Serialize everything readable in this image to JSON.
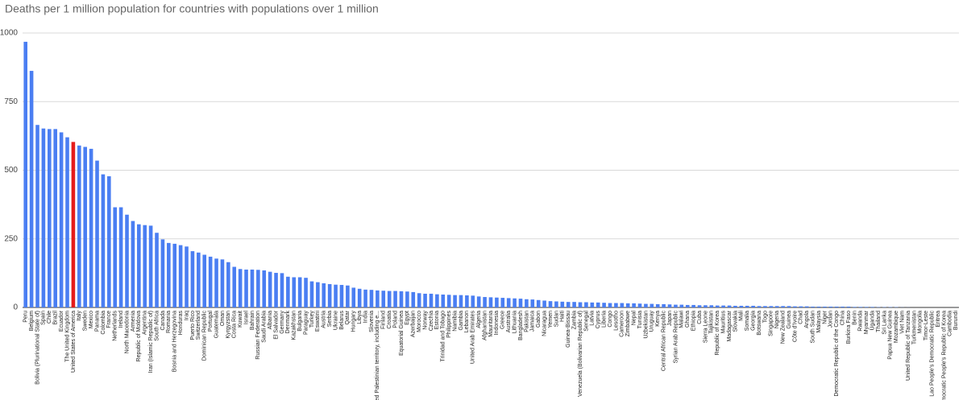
{
  "chart_data": {
    "type": "bar",
    "title": "Deaths per 1 million population for countries with populations over 1 million",
    "categories": [
      "Peru",
      "Belgium",
      "Bolivia (Plurinational State of)",
      "Spain",
      "Chile",
      "Brazil",
      "Ecuador",
      "The United Kingdom",
      "United States of America",
      "Italy",
      "Sweden",
      "Mexico",
      "Panama",
      "Colombia",
      "France",
      "Netherlands",
      "Ireland",
      "North Macedonia",
      "Armenia",
      "Republic of Moldova",
      "Argentina",
      "Iran (Islamic Republic of)",
      "South Africa",
      "Canada",
      "Romania",
      "Bosnia and Herzegovina",
      "Honduras",
      "Iraq",
      "Puerto Rico",
      "Switzerland",
      "Dominican Republic",
      "Portugal",
      "Guatemala",
      "Oman",
      "Kyrgyzstan",
      "Costa Rica",
      "Kuwait",
      "Israel",
      "Bahrain",
      "Russian Federation",
      "Saudi Arabia",
      "Albania",
      "El Salvador",
      "Germany",
      "Denmark",
      "Kazakhstan",
      "Bulgaria",
      "Paraguay",
      "Turkey",
      "Eswatini",
      "Austria",
      "Serbia",
      "Ukraine",
      "Belarus",
      "Qatar",
      "Hungary",
      "Libya",
      "India",
      "Slovenia",
      "Occupied Palestinian territory, including e...",
      "Finland",
      "Croatia",
      "Poland",
      "Equatorial Guinea",
      "Egypt",
      "Azerbaijan",
      "Morocco",
      "Norway",
      "Czechia",
      "Estonia",
      "Trinidad and Tobago",
      "Philippines",
      "Namibia",
      "Gambia",
      "Lebanon",
      "United Arab Emirates",
      "Algeria",
      "Afghanistan",
      "Mauritania",
      "Indonesia",
      "Greece",
      "Australia",
      "Lithuania",
      "Bangladesh",
      "Pakistan",
      "Jamaica",
      "Gabon",
      "Nicaragua",
      "Yemen",
      "Sudan",
      "Haiti",
      "Guinea-Bissau",
      "Zambia",
      "Venezuela (Bolivarian Republic of)",
      "Senegal",
      "Latvia",
      "Cyprus",
      "Liberia",
      "Congo",
      "Lesotho",
      "Cameroon",
      "Zimbabwe",
      "Nepal",
      "Tunisia",
      "Uzbekistan",
      "Uruguay",
      "Kenya",
      "Central African Republic",
      "Japan",
      "Syrian Arab Republic",
      "Malawi",
      "Ghana",
      "Ethiopia",
      "Cuba",
      "Sierra Leone",
      "Tajikistan",
      "Republic of Korea",
      "Mauritius",
      "Madagascar",
      "Slovakia",
      "Mali",
      "Somalia",
      "Georgia",
      "Botswana",
      "Togo",
      "Singapore",
      "Nigeria",
      "New Zealand",
      "Guinea",
      "Côte d'Ivoire",
      "Chad",
      "Angola",
      "South Sudan",
      "Malaysia",
      "Niger",
      "Jordan",
      "Democratic Republic of the Congo",
      "China",
      "Burkina Faso",
      "Benin",
      "Rwanda",
      "Myanmar",
      "Uganda",
      "Thailand",
      "Sri Lanka",
      "Papua New Guinea",
      "Mozambique",
      "Viet Nam",
      "United Republic of Tanzania",
      "Turkmenistan",
      "Mongolia",
      "Timor-Leste",
      "Lao People's Democratic Republic",
      "Eritrea",
      "Democratic People's Republic of Korea",
      "Cambodia",
      "Burundi"
    ],
    "values": [
      968,
      862,
      665,
      652,
      650,
      650,
      638,
      620,
      603,
      590,
      585,
      578,
      535,
      485,
      478,
      365,
      365,
      338,
      315,
      303,
      300,
      298,
      272,
      248,
      235,
      232,
      227,
      222,
      205,
      200,
      192,
      185,
      178,
      175,
      165,
      148,
      140,
      138,
      138,
      137,
      135,
      130,
      126,
      125,
      112,
      110,
      110,
      108,
      95,
      92,
      88,
      85,
      83,
      82,
      80,
      72,
      68,
      65,
      64,
      62,
      61,
      60,
      60,
      59,
      58,
      56,
      52,
      50,
      50,
      48,
      47,
      46,
      45,
      45,
      44,
      43,
      40,
      38,
      37,
      36,
      35,
      34,
      33,
      32,
      30,
      29,
      27,
      25,
      23,
      22,
      21,
      20,
      20,
      19,
      19,
      18,
      18,
      17,
      16,
      16,
      16,
      15,
      15,
      14,
      13,
      13,
      12,
      12,
      11,
      10,
      10,
      9,
      9,
      8,
      8,
      8,
      7,
      7,
      7,
      6,
      6,
      6,
      6,
      5,
      5,
      5,
      5,
      5,
      5,
      4,
      4,
      4,
      3,
      3,
      3,
      3,
      3,
      3,
      3,
      2,
      2,
      2,
      2,
      1,
      1,
      1,
      1,
      0.4,
      0.3,
      0,
      0,
      0,
      0,
      0,
      0,
      0,
      0.1
    ],
    "colors": [
      "#4a7ef2",
      "#4a7ef2",
      "#4a7ef2",
      "#4a7ef2",
      "#4a7ef2",
      "#4a7ef2",
      "#4a7ef2",
      "#4a7ef2",
      "#e51c1c",
      "#4a7ef2",
      "#4a7ef2",
      "#4a7ef2",
      "#4a7ef2",
      "#4a7ef2",
      "#4a7ef2",
      "#4a7ef2",
      "#4a7ef2",
      "#4a7ef2",
      "#4a7ef2",
      "#4a7ef2",
      "#4a7ef2",
      "#4a7ef2",
      "#4a7ef2",
      "#4a7ef2",
      "#4a7ef2",
      "#4a7ef2",
      "#4a7ef2",
      "#4a7ef2",
      "#4a7ef2",
      "#4a7ef2",
      "#4a7ef2",
      "#4a7ef2",
      "#4a7ef2",
      "#4a7ef2",
      "#4a7ef2",
      "#4a7ef2",
      "#4a7ef2",
      "#4a7ef2",
      "#4a7ef2",
      "#4a7ef2",
      "#4a7ef2",
      "#4a7ef2",
      "#4a7ef2",
      "#4a7ef2",
      "#4a7ef2",
      "#4a7ef2",
      "#4a7ef2",
      "#4a7ef2",
      "#4a7ef2",
      "#4a7ef2",
      "#4a7ef2",
      "#4a7ef2",
      "#4a7ef2",
      "#4a7ef2",
      "#4a7ef2",
      "#4a7ef2",
      "#4a7ef2",
      "#4a7ef2",
      "#4a7ef2",
      "#4a7ef2",
      "#4a7ef2",
      "#4a7ef2",
      "#4a7ef2",
      "#4a7ef2",
      "#4a7ef2",
      "#4a7ef2",
      "#4a7ef2",
      "#4a7ef2",
      "#4a7ef2",
      "#4a7ef2",
      "#4a7ef2",
      "#4a7ef2",
      "#4a7ef2",
      "#4a7ef2",
      "#4a7ef2",
      "#4a7ef2",
      "#4a7ef2",
      "#4a7ef2",
      "#4a7ef2",
      "#4a7ef2",
      "#4a7ef2",
      "#4a7ef2",
      "#4a7ef2",
      "#4a7ef2",
      "#4a7ef2",
      "#4a7ef2",
      "#4a7ef2",
      "#4a7ef2",
      "#4a7ef2",
      "#4a7ef2",
      "#4a7ef2",
      "#4a7ef2",
      "#4a7ef2",
      "#4a7ef2",
      "#4a7ef2",
      "#4a7ef2",
      "#4a7ef2",
      "#4a7ef2",
      "#4a7ef2",
      "#4a7ef2",
      "#4a7ef2",
      "#4a7ef2",
      "#4a7ef2",
      "#4a7ef2",
      "#4a7ef2",
      "#4a7ef2",
      "#4a7ef2",
      "#4a7ef2",
      "#4a7ef2",
      "#4a7ef2",
      "#4a7ef2",
      "#4a7ef2",
      "#4a7ef2",
      "#4a7ef2",
      "#4a7ef2",
      "#4a7ef2",
      "#4a7ef2",
      "#4a7ef2",
      "#4a7ef2",
      "#4a7ef2",
      "#4a7ef2",
      "#4a7ef2",
      "#4a7ef2",
      "#4a7ef2",
      "#4a7ef2",
      "#4a7ef2",
      "#4a7ef2",
      "#4a7ef2",
      "#4a7ef2",
      "#4a7ef2",
      "#4a7ef2",
      "#4a7ef2",
      "#4a7ef2",
      "#4a7ef2",
      "#4a7ef2",
      "#4a7ef2",
      "#4a7ef2",
      "#4a7ef2",
      "#4a7ef2",
      "#4a7ef2",
      "#4a7ef2",
      "#4a7ef2",
      "#4a7ef2",
      "#4a7ef2",
      "#4a7ef2",
      "#4a7ef2",
      "#4a7ef2",
      "#4a7ef2",
      "#4a7ef2",
      "#4a7ef2",
      "#4a7ef2",
      "#4a7ef2",
      "#4a7ef2",
      "#4a7ef2",
      "#4a7ef2",
      "#4a7ef2",
      "#4a7ef2"
    ],
    "ylim": [
      0,
      1000
    ],
    "yticks": [
      0,
      250,
      500,
      750,
      1000
    ],
    "grid": true
  }
}
